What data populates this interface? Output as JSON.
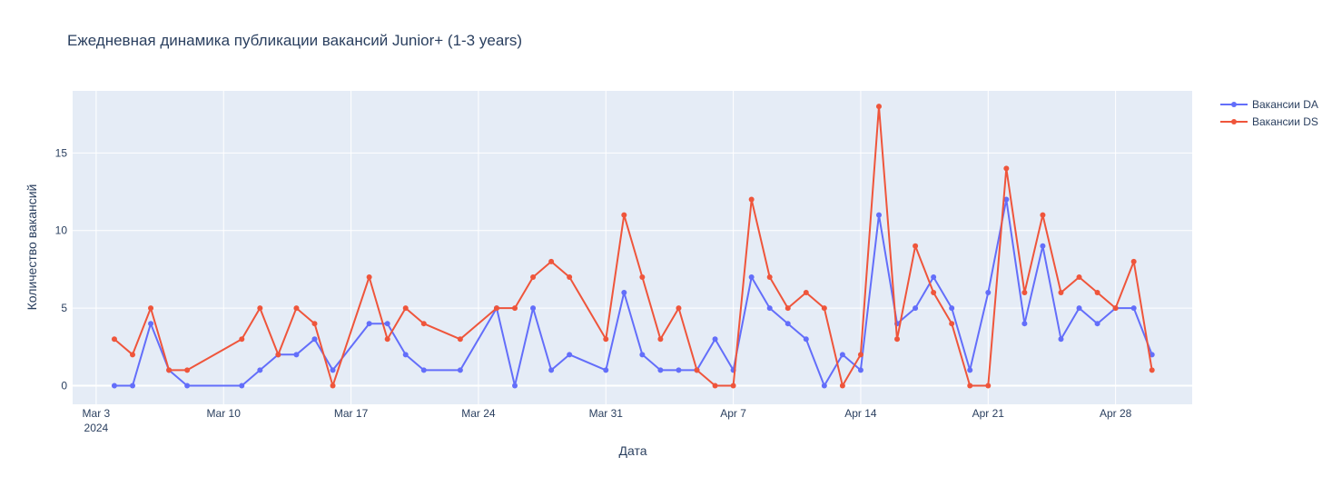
{
  "chart_data": {
    "type": "line",
    "title": "Ежедневная динамика публикации вакансий Junior+ (1-3 years)",
    "xlabel": "Дата",
    "ylabel": "Количество вакансий",
    "x_start_date": "2024-03-02",
    "xlim": [
      "2024-03-01T17:00",
      "2024-05-02T05:00"
    ],
    "ylim": [
      -1.2,
      19
    ],
    "x_ticks": [
      {
        "date": "2024-03-03",
        "label": "Mar 3",
        "sublabel": "2024"
      },
      {
        "date": "2024-03-10",
        "label": "Mar 10"
      },
      {
        "date": "2024-03-17",
        "label": "Mar 17"
      },
      {
        "date": "2024-03-24",
        "label": "Mar 24"
      },
      {
        "date": "2024-03-31",
        "label": "Mar 31"
      },
      {
        "date": "2024-04-07",
        "label": "Apr 7"
      },
      {
        "date": "2024-04-14",
        "label": "Apr 14"
      },
      {
        "date": "2024-04-21",
        "label": "Apr 21"
      },
      {
        "date": "2024-04-28",
        "label": "Apr 28"
      }
    ],
    "y_ticks": [
      0,
      5,
      10,
      15
    ],
    "grid": true,
    "legend_position": "top-right",
    "series": [
      {
        "name": "Вакансии DA",
        "color": "#636efa",
        "x": [
          "2024-03-04",
          "2024-03-05",
          "2024-03-06",
          "2024-03-07",
          "2024-03-08",
          "2024-03-11",
          "2024-03-12",
          "2024-03-13",
          "2024-03-14",
          "2024-03-15",
          "2024-03-16",
          "2024-03-18",
          "2024-03-19",
          "2024-03-20",
          "2024-03-21",
          "2024-03-23",
          "2024-03-25",
          "2024-03-26",
          "2024-03-27",
          "2024-03-28",
          "2024-03-29",
          "2024-03-31",
          "2024-04-01",
          "2024-04-02",
          "2024-04-03",
          "2024-04-04",
          "2024-04-05",
          "2024-04-06",
          "2024-04-07",
          "2024-04-08",
          "2024-04-09",
          "2024-04-10",
          "2024-04-11",
          "2024-04-12",
          "2024-04-13",
          "2024-04-14",
          "2024-04-15",
          "2024-04-16",
          "2024-04-17",
          "2024-04-18",
          "2024-04-19",
          "2024-04-20",
          "2024-04-21",
          "2024-04-22",
          "2024-04-23",
          "2024-04-24",
          "2024-04-25",
          "2024-04-26",
          "2024-04-27",
          "2024-04-28",
          "2024-04-29",
          "2024-04-30"
        ],
        "y": [
          0,
          0,
          4,
          1,
          0,
          0,
          1,
          2,
          2,
          3,
          1,
          4,
          4,
          2,
          1,
          1,
          5,
          0,
          5,
          1,
          2,
          1,
          6,
          2,
          1,
          1,
          1,
          3,
          1,
          7,
          5,
          4,
          3,
          0,
          2,
          1,
          11,
          4,
          5,
          7,
          5,
          1,
          6,
          12,
          4,
          9,
          3,
          5,
          4,
          5,
          5,
          2
        ]
      },
      {
        "name": "Вакансии DS",
        "color": "#ef553b",
        "x": [
          "2024-03-04",
          "2024-03-05",
          "2024-03-06",
          "2024-03-07",
          "2024-03-08",
          "2024-03-11",
          "2024-03-12",
          "2024-03-13",
          "2024-03-14",
          "2024-03-15",
          "2024-03-16",
          "2024-03-18",
          "2024-03-19",
          "2024-03-20",
          "2024-03-21",
          "2024-03-23",
          "2024-03-25",
          "2024-03-26",
          "2024-03-27",
          "2024-03-28",
          "2024-03-29",
          "2024-03-31",
          "2024-04-01",
          "2024-04-02",
          "2024-04-03",
          "2024-04-04",
          "2024-04-05",
          "2024-04-06",
          "2024-04-07",
          "2024-04-08",
          "2024-04-09",
          "2024-04-10",
          "2024-04-11",
          "2024-04-12",
          "2024-04-13",
          "2024-04-14",
          "2024-04-15",
          "2024-04-16",
          "2024-04-17",
          "2024-04-18",
          "2024-04-19",
          "2024-04-20",
          "2024-04-21",
          "2024-04-22",
          "2024-04-23",
          "2024-04-24",
          "2024-04-25",
          "2024-04-26",
          "2024-04-27",
          "2024-04-28",
          "2024-04-29",
          "2024-04-30"
        ],
        "y": [
          3,
          2,
          5,
          1,
          1,
          3,
          5,
          2,
          5,
          4,
          0,
          7,
          3,
          5,
          4,
          3,
          5,
          5,
          7,
          8,
          7,
          3,
          11,
          7,
          3,
          5,
          1,
          0,
          0,
          12,
          7,
          5,
          6,
          5,
          0,
          2,
          18,
          3,
          9,
          6,
          4,
          0,
          0,
          14,
          6,
          11,
          6,
          7,
          6,
          5,
          8,
          1
        ]
      }
    ]
  }
}
